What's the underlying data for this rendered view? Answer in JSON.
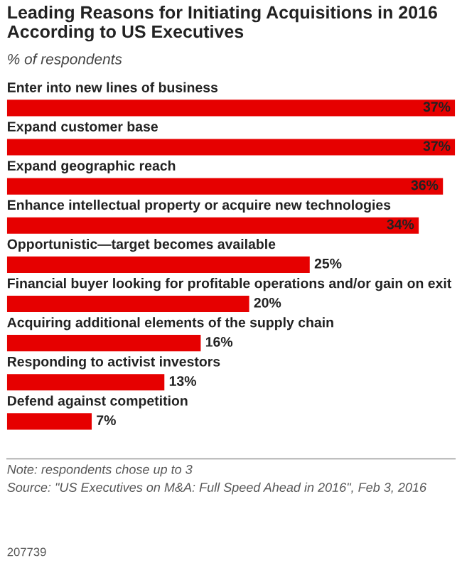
{
  "chart_data": {
    "type": "bar",
    "orientation": "horizontal",
    "title": "Leading Reasons for Initiating Acquisitions in 2016 According to US Executives",
    "subtitle": "% of respondents",
    "categories": [
      "Enter into new lines of business",
      "Expand customer base",
      "Expand geographic reach",
      "Enhance intellectual property or acquire new technologies",
      "Opportunistic—target becomes available",
      "Financial buyer looking for profitable operations and/or gain on exit",
      "Acquiring additional elements of the supply chain",
      "Responding to activist investors",
      "Defend against competition"
    ],
    "values": [
      37,
      37,
      36,
      34,
      25,
      20,
      16,
      13,
      7
    ],
    "value_labels": [
      "37%",
      "37%",
      "36%",
      "34%",
      "25%",
      "20%",
      "16%",
      "13%",
      "7%"
    ],
    "color": "#e60000",
    "annotations": [
      "Note: respondents chose up to 3",
      "Source: \"US Executives on M&A: Full Speed Ahead in 2016\", Feb 3, 2016",
      "207739"
    ]
  }
}
